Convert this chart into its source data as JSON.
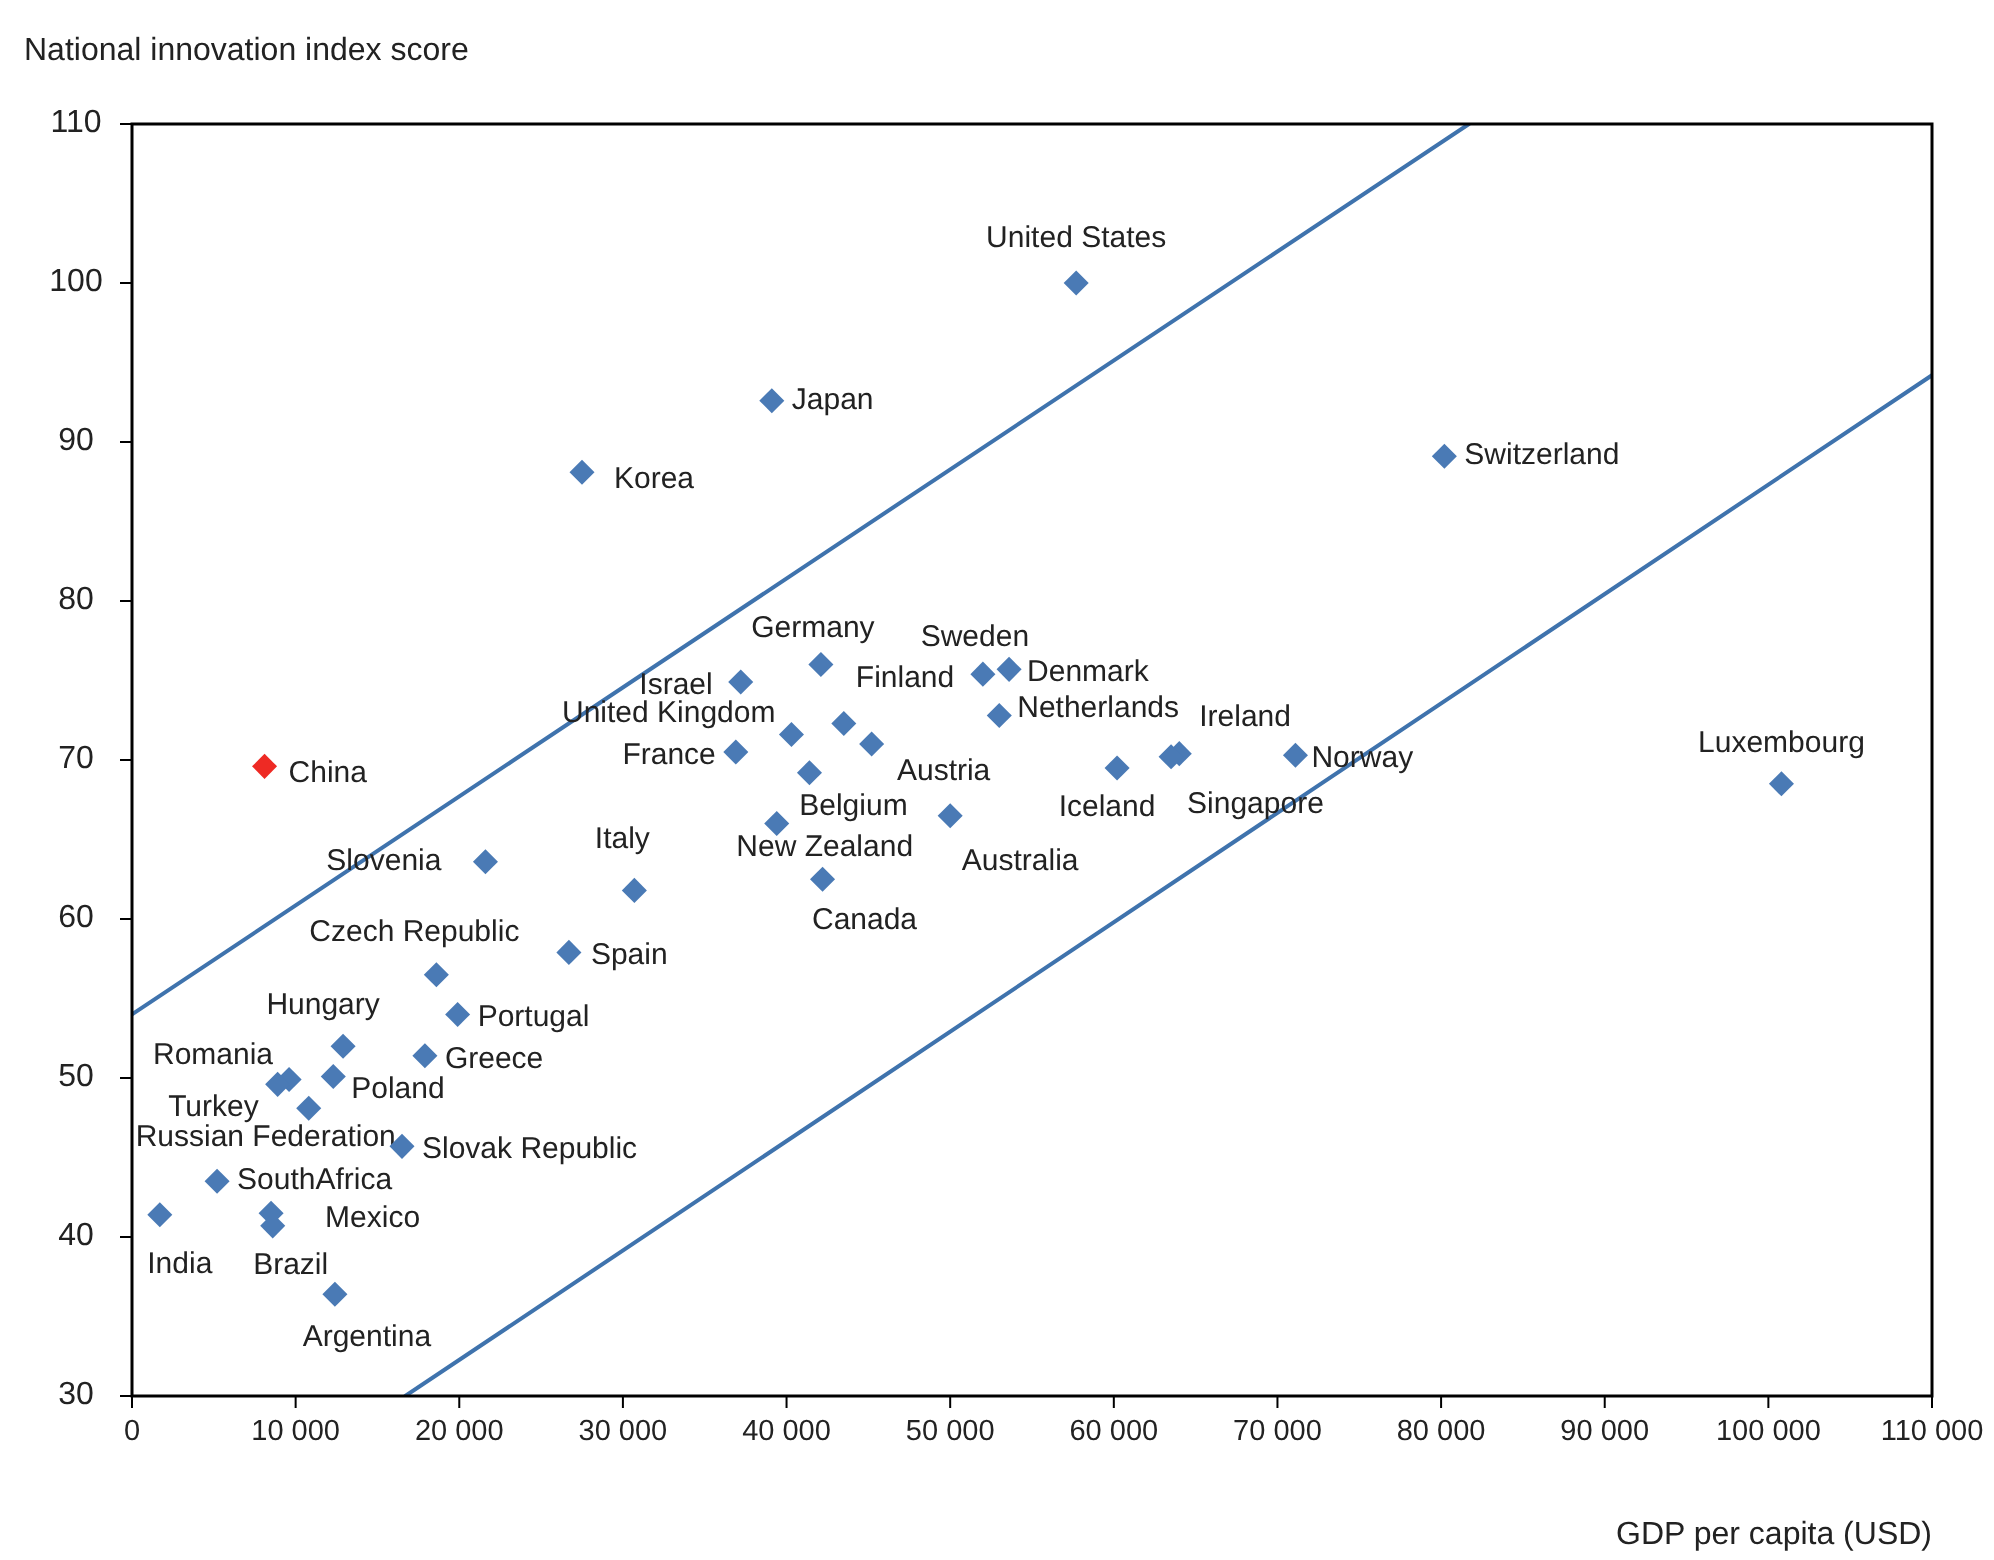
{
  "chart_data": {
    "type": "scatter",
    "xlabel": "GDP per capita (USD)",
    "ylabel": "National innovation index score",
    "xlim": [
      0,
      110000
    ],
    "ylim": [
      30,
      110
    ],
    "xticks": [
      0,
      {
        "value": 10000,
        "label": "10 000"
      },
      {
        "value": 20000,
        "label": "20 000"
      },
      {
        "value": 30000,
        "label": "30 000"
      },
      {
        "value": 40000,
        "label": "40 000"
      },
      {
        "value": 50000,
        "label": "50 000"
      },
      {
        "value": 60000,
        "label": "60 000"
      },
      {
        "value": 70000,
        "label": "70 000"
      },
      {
        "value": 80000,
        "label": "80 000"
      },
      {
        "value": 90000,
        "label": "90 000"
      },
      {
        "value": 100000,
        "label": "100 000"
      },
      {
        "value": 110000,
        "label": "110 000"
      }
    ],
    "yticks": [
      30,
      40,
      50,
      60,
      70,
      80,
      90,
      100,
      110
    ],
    "marker": "diamond",
    "grid": false,
    "series": [
      {
        "type": "line",
        "color": "#3f73ad",
        "line_style": "solid",
        "marker": "none",
        "x": [
          0,
          81700
        ],
        "values": [
          54.0,
          110
        ]
      },
      {
        "type": "line",
        "color": "#3f73ad",
        "line_style": "solid",
        "marker": "none",
        "x": [
          16700,
          110000
        ],
        "values": [
          30,
          94.2
        ]
      },
      {
        "x": [
          57700,
          39100,
          27500,
          80200,
          100800,
          71100,
          64000,
          60200,
          63500,
          53600,
          52000,
          42100,
          37200,
          43500,
          40300,
          53000,
          45200,
          36900,
          41400,
          39400,
          50000,
          42200,
          30700,
          8100,
          21600,
          26700,
          18600,
          19900,
          12900,
          17900,
          12300,
          9600,
          8900,
          10800,
          16500,
          5200,
          8500,
          8600,
          1700,
          12400
        ],
        "values": [
          100,
          92.6,
          88.1,
          89.1,
          68.5,
          70.3,
          70.4,
          69.5,
          70.2,
          75.7,
          75.4,
          76.0,
          74.9,
          72.3,
          71.6,
          72.8,
          71.0,
          70.5,
          69.2,
          66.0,
          66.5,
          62.5,
          61.8,
          69.6,
          63.6,
          57.9,
          56.5,
          54.0,
          52.0,
          51.4,
          50.1,
          49.9,
          49.6,
          48.1,
          45.7,
          43.5,
          41.5,
          40.7,
          41.4,
          36.4
        ],
        "colors": [
          "#4a7ab5",
          "#4a7ab5",
          "#4a7ab5",
          "#4a7ab5",
          "#4a7ab5",
          "#4a7ab5",
          "#4a7ab5",
          "#4a7ab5",
          "#4a7ab5",
          "#4a7ab5",
          "#4a7ab5",
          "#4a7ab5",
          "#4a7ab5",
          "#4a7ab5",
          "#4a7ab5",
          "#4a7ab5",
          "#4a7ab5",
          "#4a7ab5",
          "#4a7ab5",
          "#4a7ab5",
          "#4a7ab5",
          "#4a7ab5",
          "#4a7ab5",
          "#ee2a24",
          "#4a7ab5",
          "#4a7ab5",
          "#4a7ab5",
          "#4a7ab5",
          "#4a7ab5",
          "#4a7ab5",
          "#4a7ab5",
          "#4a7ab5",
          "#4a7ab5",
          "#4a7ab5",
          "#4a7ab5",
          "#4a7ab5",
          "#4a7ab5",
          "#4a7ab5",
          "#4a7ab5",
          "#4a7ab5"
        ]
      }
    ],
    "annotations": [
      {
        "text": "United States",
        "x": 57700,
        "y": 100
      },
      {
        "text": "Japan",
        "x": 39100,
        "y": 92.6
      },
      {
        "text": "Korea",
        "x": 27500,
        "y": 88.1
      },
      {
        "text": "Switzerland",
        "x": 80200,
        "y": 89.1
      },
      {
        "text": "Luxembourg",
        "x": 100800,
        "y": 68.5
      },
      {
        "text": "Norway",
        "x": 71100,
        "y": 70.3
      },
      {
        "text": "Ireland",
        "x": 64000,
        "y": 70.4
      },
      {
        "text": "Iceland",
        "x": 60200,
        "y": 69.5
      },
      {
        "text": "Singapore",
        "x": 63500,
        "y": 70.2
      },
      {
        "text": "Denmark",
        "x": 53600,
        "y": 75.7
      },
      {
        "text": "Sweden",
        "x": 52000,
        "y": 75.4
      },
      {
        "text": "Germany",
        "x": 42100,
        "y": 76.0
      },
      {
        "text": "Israel",
        "x": 37200,
        "y": 74.9
      },
      {
        "text": "Finland",
        "x": 43500,
        "y": 72.3
      },
      {
        "text": "United Kingdom",
        "x": 40300,
        "y": 71.6
      },
      {
        "text": "Netherlands",
        "x": 53000,
        "y": 72.8
      },
      {
        "text": "Austria",
        "x": 45200,
        "y": 71.0
      },
      {
        "text": "France",
        "x": 36900,
        "y": 70.5
      },
      {
        "text": "Belgium",
        "x": 41400,
        "y": 69.2
      },
      {
        "text": "New Zealand",
        "x": 39400,
        "y": 66.0
      },
      {
        "text": "Australia",
        "x": 50000,
        "y": 66.5
      },
      {
        "text": "Canada",
        "x": 42200,
        "y": 62.5
      },
      {
        "text": "Italy",
        "x": 30700,
        "y": 61.8
      },
      {
        "text": "China",
        "x": 8100,
        "y": 69.6
      },
      {
        "text": "Slovenia",
        "x": 21600,
        "y": 63.6
      },
      {
        "text": "Spain",
        "x": 26700,
        "y": 57.9
      },
      {
        "text": "Czech Republic",
        "x": 18600,
        "y": 56.5
      },
      {
        "text": "Portugal",
        "x": 19900,
        "y": 54.0
      },
      {
        "text": "Hungary",
        "x": 12900,
        "y": 52.0
      },
      {
        "text": "Greece",
        "x": 17900,
        "y": 51.4
      },
      {
        "text": "Poland",
        "x": 12300,
        "y": 50.1
      },
      {
        "text": "Romania",
        "x": 9600,
        "y": 49.9
      },
      {
        "text": "Russian Federation",
        "x": 8900,
        "y": 49.6
      },
      {
        "text": "Turkey",
        "x": 10800,
        "y": 48.1
      },
      {
        "text": "Slovak Republic",
        "x": 16500,
        "y": 45.7
      },
      {
        "text": "SouthAfrica",
        "x": 5200,
        "y": 43.5
      },
      {
        "text": "Mexico",
        "x": 8500,
        "y": 41.5
      },
      {
        "text": "Brazil",
        "x": 8600,
        "y": 40.7
      },
      {
        "text": "India",
        "x": 1700,
        "y": 41.4
      },
      {
        "text": "Argentina",
        "x": 12400,
        "y": 36.4
      }
    ]
  }
}
